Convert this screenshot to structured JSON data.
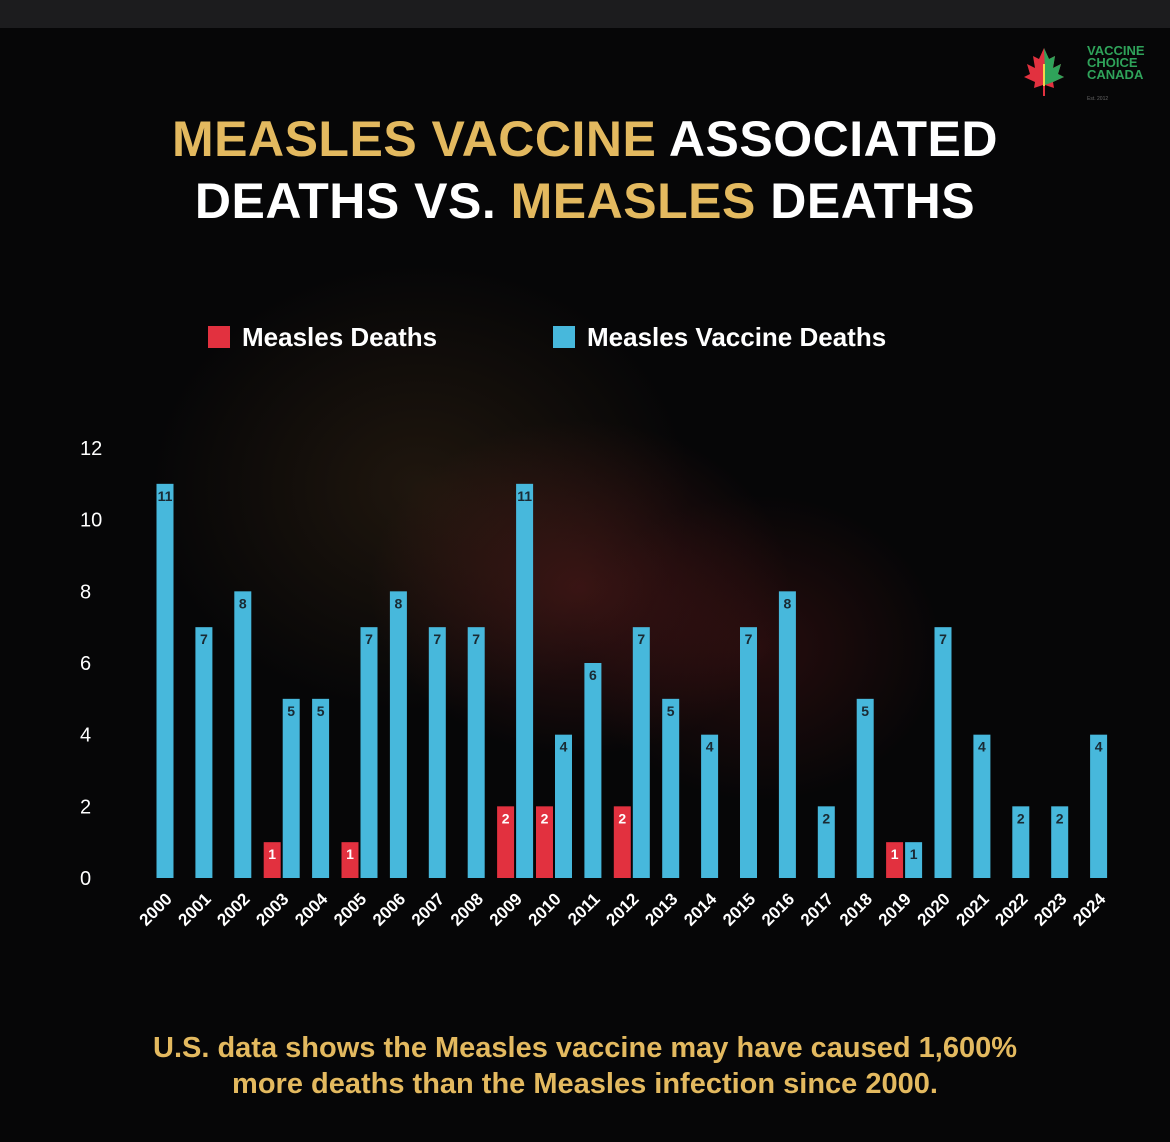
{
  "logo": {
    "icon": "maple-leaf-icon",
    "line1": "VACCINE",
    "line2": "CHOICE",
    "line3": "CANADA",
    "sub": "Est. 2012"
  },
  "title": {
    "line1_gold": "MEASLES VACCINE",
    "line1_white": " ASSOCIATED",
    "line2_white": "DEATHS VS. ",
    "line2_gold": "MEASLES",
    "line2_end": " DEATHS"
  },
  "legend": {
    "measles_label": "Measles Deaths",
    "vaccine_label": "Measles Vaccine Deaths"
  },
  "colors": {
    "measles": "#e2313f",
    "vaccine": "#47b8dc",
    "gold": "#e3b95f"
  },
  "chart_data": {
    "type": "bar",
    "title": "MEASLES VACCINE ASSOCIATED DEATHS VS. MEASLES DEATHS",
    "xlabel": "",
    "ylabel": "",
    "ylim": [
      0,
      12
    ],
    "yticks": [
      0,
      2,
      4,
      6,
      8,
      10,
      12
    ],
    "grid": false,
    "legend": "top-center",
    "categories": [
      "2000",
      "2001",
      "2002",
      "2003",
      "2004",
      "2005",
      "2006",
      "2007",
      "2008",
      "2009",
      "2010",
      "2011",
      "2012",
      "2013",
      "2014",
      "2015",
      "2016",
      "2017",
      "2018",
      "2019",
      "2020",
      "2021",
      "2022",
      "2023",
      "2024"
    ],
    "series": [
      {
        "name": "Measles Deaths",
        "color": "#e2313f",
        "values": [
          0,
          0,
          0,
          1,
          0,
          1,
          0,
          0,
          0,
          2,
          2,
          0,
          2,
          0,
          0,
          0,
          0,
          0,
          0,
          1,
          0,
          0,
          0,
          0,
          0
        ]
      },
      {
        "name": "Measles Vaccine Deaths",
        "color": "#47b8dc",
        "values": [
          11,
          7,
          8,
          5,
          5,
          7,
          8,
          7,
          7,
          11,
          4,
          6,
          7,
          5,
          4,
          7,
          8,
          2,
          5,
          1,
          7,
          4,
          2,
          2,
          4
        ]
      }
    ],
    "bar_label_values": {
      "measles": [
        "1",
        "1",
        "2",
        "2",
        "2",
        "1"
      ],
      "vaccine": [
        "11",
        "7",
        "8",
        "5",
        "5",
        "7",
        "8",
        "7",
        "7",
        "11",
        "4",
        "6",
        "7",
        "5",
        "4",
        "7",
        "8",
        "2",
        "5",
        "1",
        "7",
        "4",
        "2",
        "2",
        "4"
      ]
    }
  },
  "footer": {
    "line1": "U.S. data shows the Measles vaccine may have caused 1,600%",
    "line2": "more deaths than the Measles infection since 2000."
  }
}
